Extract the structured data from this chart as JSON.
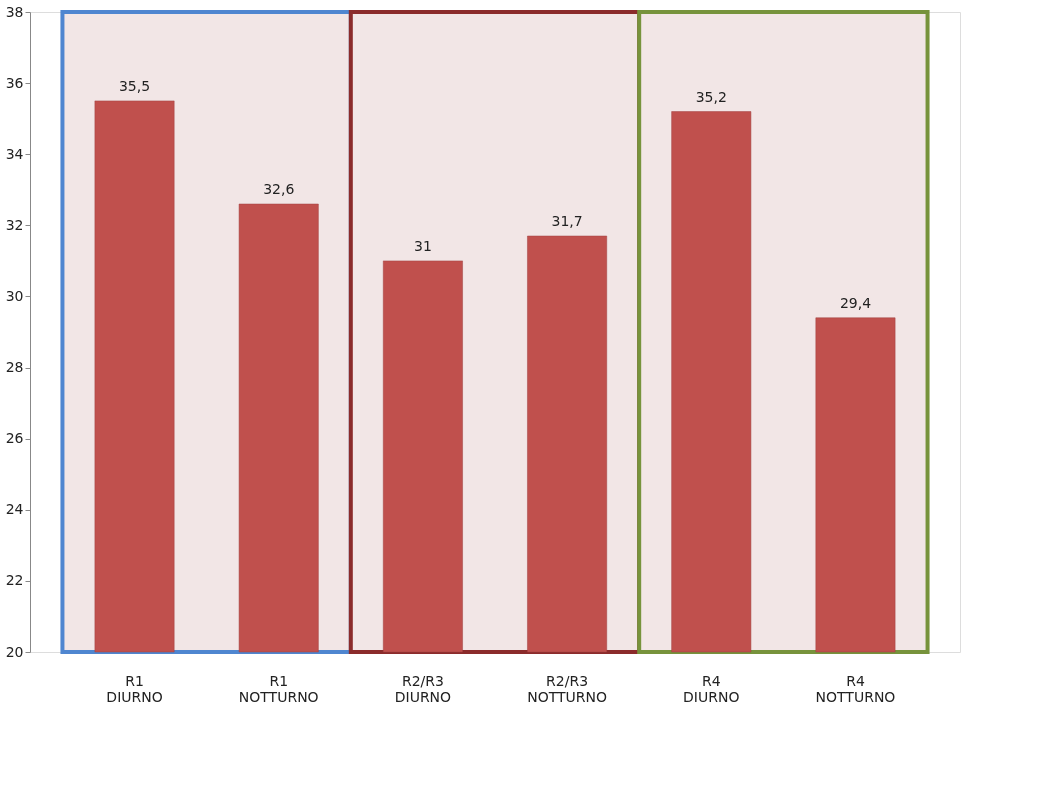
{
  "chart_data": {
    "type": "bar",
    "categories": [
      "R1 DIURNO",
      "R1 NOTTURNO",
      "R2/R3 DIURNO",
      "R2/R3 NOTTURNO",
      "R4 DIURNO",
      "R4 NOTTURNO"
    ],
    "values": [
      35.5,
      32.6,
      31,
      31.7,
      35.2,
      29.4
    ],
    "value_labels": [
      "35,5",
      "32,6",
      "31",
      "31,7",
      "35,2",
      "29,4"
    ],
    "color": "#c0504d",
    "ylim": [
      20,
      38
    ],
    "yticks": [
      20,
      22,
      24,
      26,
      28,
      30,
      32,
      34,
      36,
      38
    ],
    "grid": false,
    "bands": [
      {
        "axis": "x",
        "from": "R1 DIURNO",
        "to": "R1 NOTTURNO",
        "color": "#4f86d0"
      },
      {
        "axis": "x",
        "from": "R2/R3 DIURNO",
        "to": "R2/R3 NOTTURNO",
        "color": "#8b2b2b"
      },
      {
        "axis": "x",
        "from": "R4 DIURNO",
        "to": "R4 NOTTURNO",
        "color": "#77933c"
      }
    ]
  }
}
